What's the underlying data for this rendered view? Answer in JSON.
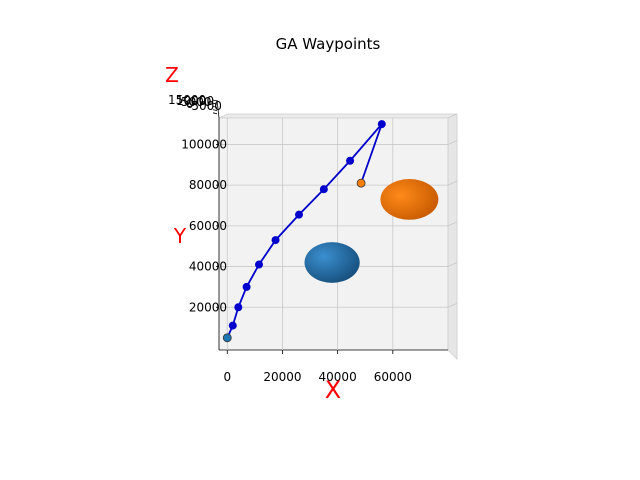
{
  "chart_data": {
    "type": "scatter",
    "title": "GA Waypoints",
    "xlabel": "X",
    "ylabel": "Y",
    "zlabel": "Z",
    "x_ticks": [
      0,
      20000,
      40000,
      60000
    ],
    "y_ticks": [
      20000,
      40000,
      60000,
      80000,
      100000
    ],
    "z_ticks": [
      "15000",
      "10000",
      "5000",
      "0",
      "-5000"
    ],
    "xlim": [
      -3000,
      80000
    ],
    "ylim": [
      -1000,
      113000
    ],
    "grid": true,
    "path": {
      "color": "#0000cc",
      "x": [
        0,
        2000,
        4000,
        7000,
        11500,
        17500,
        26000,
        35000,
        44500,
        56000,
        48500
      ],
      "y": [
        5000,
        11000,
        20000,
        30000,
        41000,
        53000,
        65500,
        78000,
        92000,
        110000,
        81000
      ]
    },
    "start_marker": {
      "x": 0,
      "y": 5000,
      "color": "#1f77b4"
    },
    "end_marker": {
      "x": 48500,
      "y": 81000,
      "color": "#ff7f0e"
    },
    "obstacles": [
      {
        "name": "blue-sphere",
        "x": 38000,
        "y": 42000,
        "rx": 10000,
        "ry": 10000,
        "color": "#1f77b4"
      },
      {
        "name": "orange-sphere",
        "x": 66000,
        "y": 73000,
        "rx": 10500,
        "ry": 10000,
        "color": "#ff7f0e"
      }
    ]
  }
}
